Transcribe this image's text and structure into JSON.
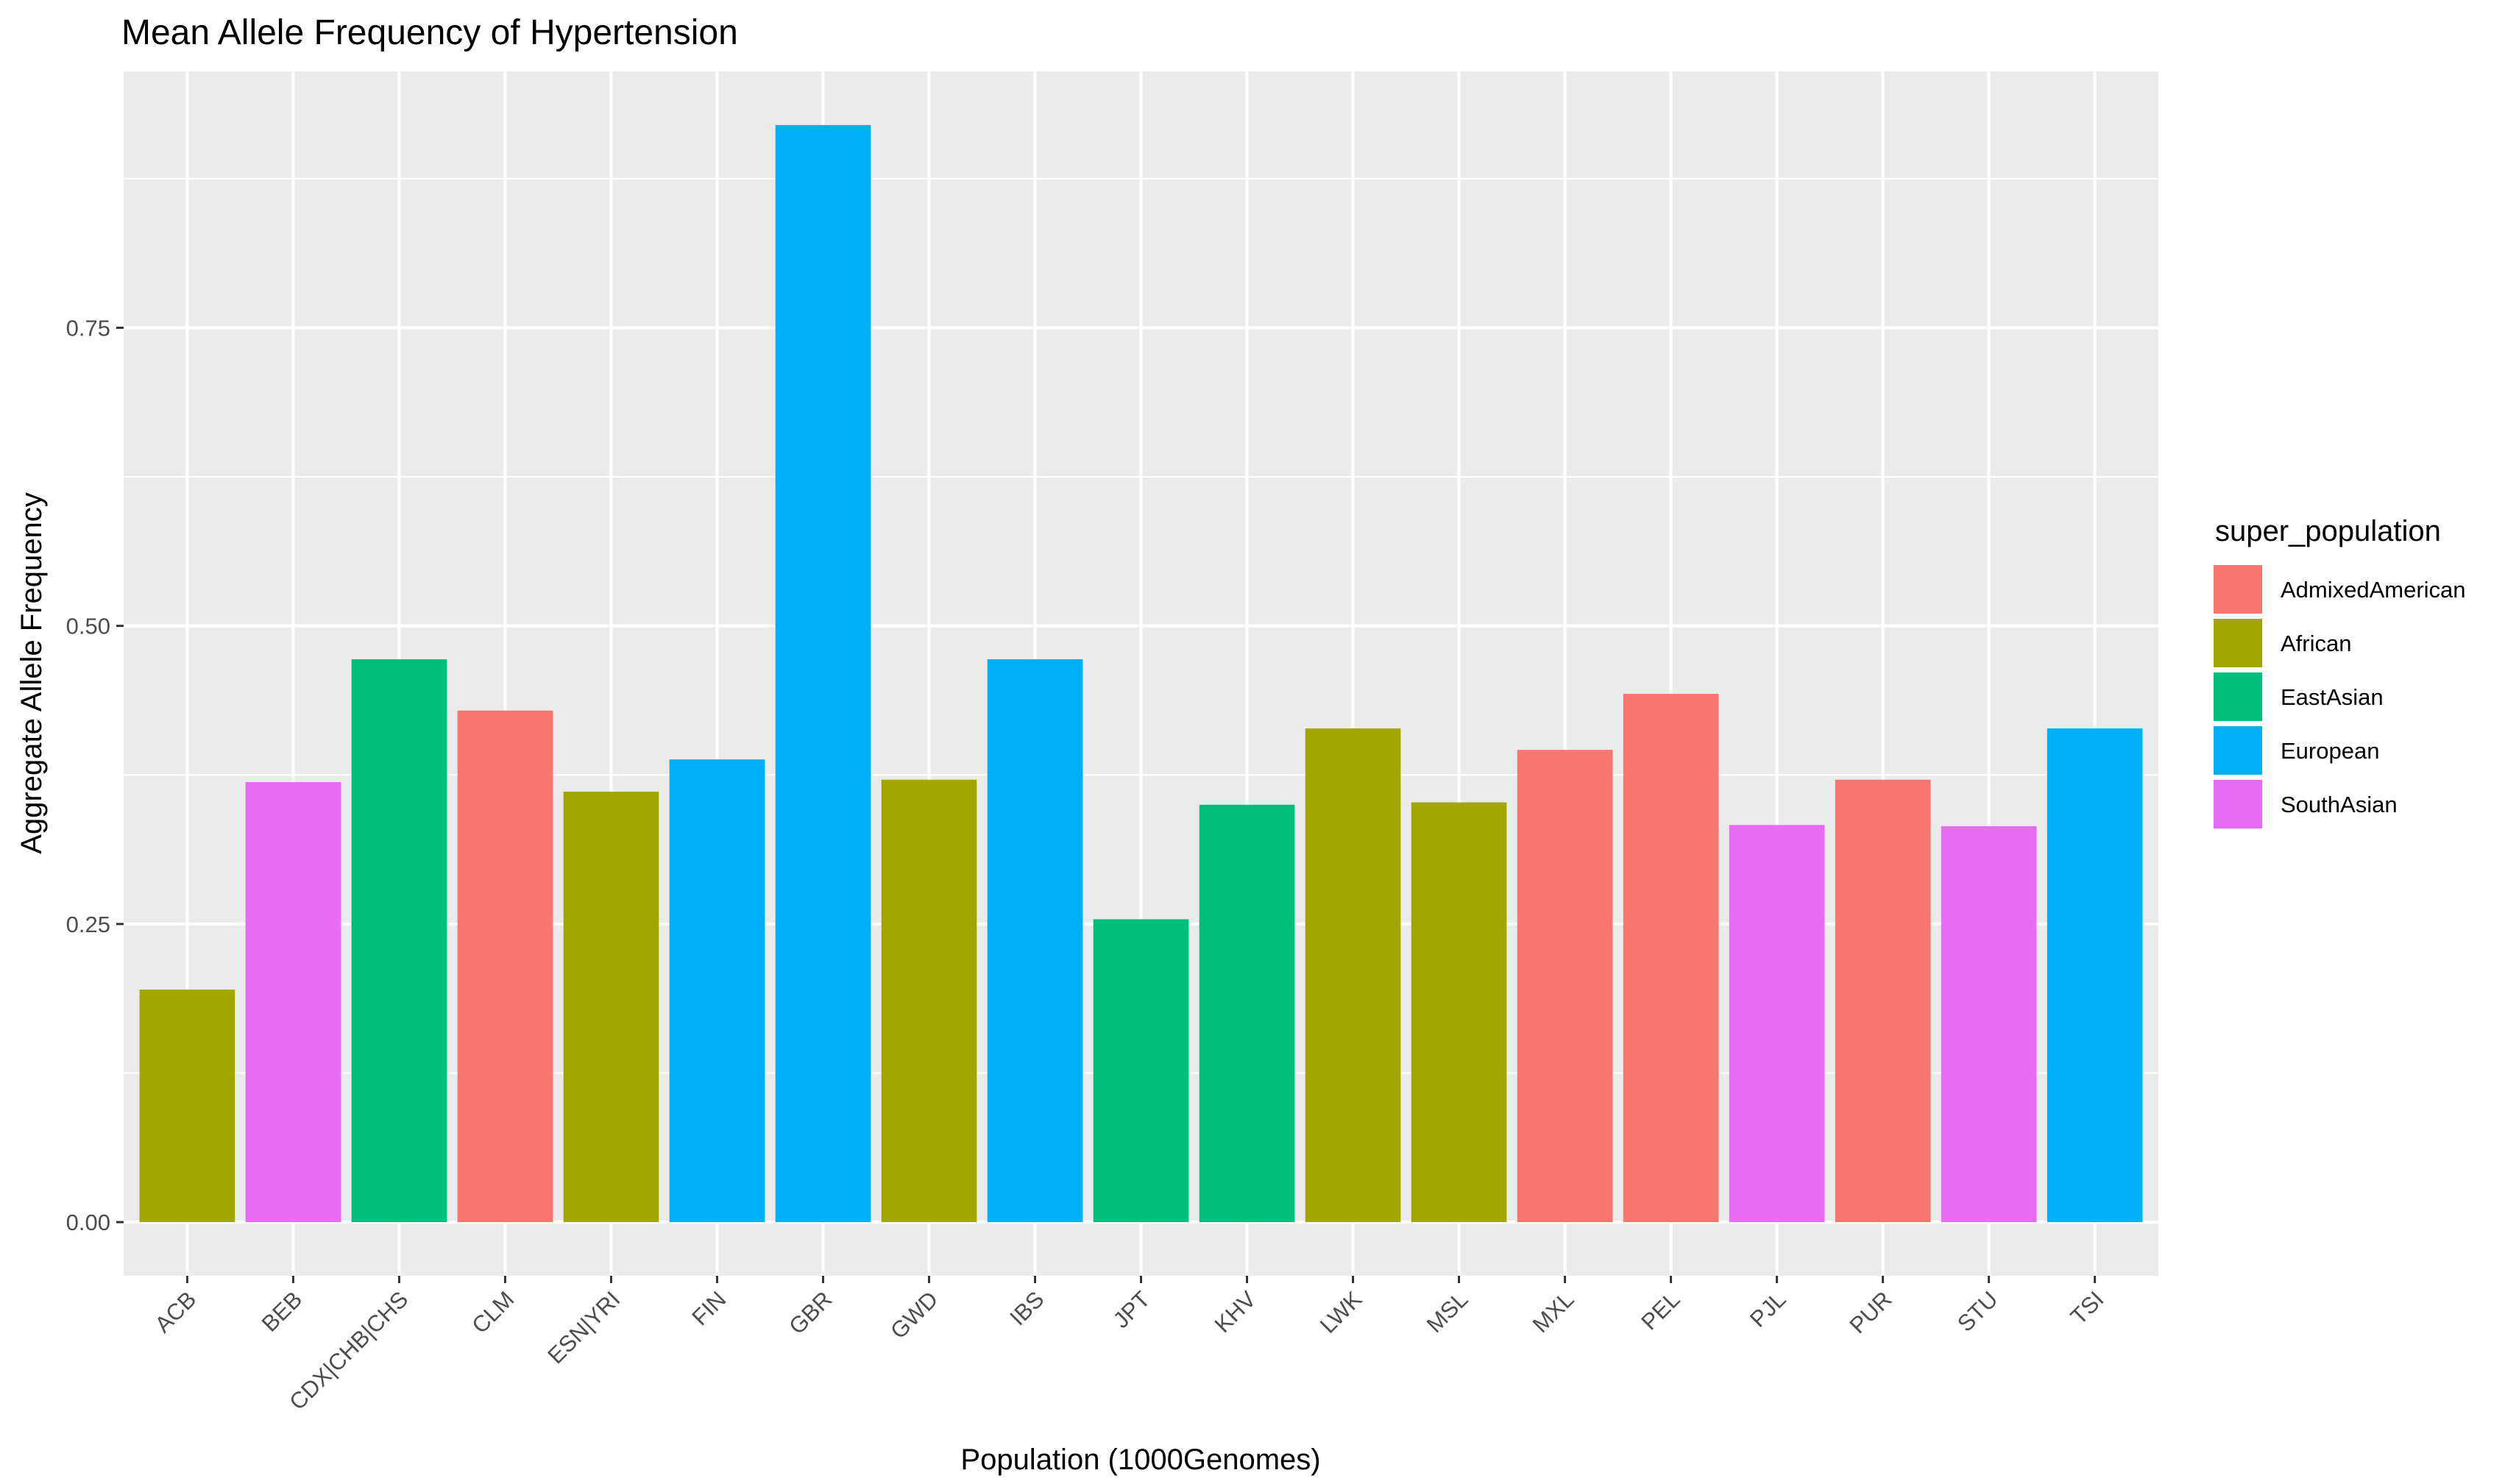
{
  "chart_data": {
    "type": "bar",
    "title": "Mean Allele Frequency of Hypertension",
    "xlabel": "Population (1000Genomes)",
    "ylabel": "Aggregate Allele Frequency",
    "ylim": [
      -0.045,
      0.965
    ],
    "yticks": [
      "0.00",
      "0.25",
      "0.50",
      "0.75"
    ],
    "ytick_values": [
      0,
      0.25,
      0.5,
      0.75
    ],
    "grid": true,
    "legend_position": "right",
    "legend_title": "super_population",
    "groups": [
      {
        "name": "AdmixedAmerican",
        "color": "#F8766D"
      },
      {
        "name": "African",
        "color": "#A3A500"
      },
      {
        "name": "EastAsian",
        "color": "#00BF7D"
      },
      {
        "name": "European",
        "color": "#00B0F6"
      },
      {
        "name": "SouthAsian",
        "color": "#E76BF3"
      }
    ],
    "categories": [
      "ACB",
      "BEB",
      "CDX|CHB|CHS",
      "CLM",
      "ESN|YRI",
      "FIN",
      "GBR",
      "GWD",
      "IBS",
      "JPT",
      "KHV",
      "LWK",
      "MSL",
      "MXL",
      "PEL",
      "PJL",
      "PUR",
      "STU",
      "TSI"
    ],
    "values": [
      0.195,
      0.369,
      0.472,
      0.429,
      0.361,
      0.388,
      0.92,
      0.371,
      0.472,
      0.254,
      0.35,
      0.414,
      0.352,
      0.396,
      0.443,
      0.333,
      0.371,
      0.332,
      0.414
    ],
    "bar_groups": [
      "African",
      "SouthAsian",
      "EastAsian",
      "AdmixedAmerican",
      "African",
      "European",
      "European",
      "African",
      "European",
      "EastAsian",
      "EastAsian",
      "African",
      "African",
      "AdmixedAmerican",
      "AdmixedAmerican",
      "SouthAsian",
      "AdmixedAmerican",
      "SouthAsian",
      "European"
    ]
  }
}
